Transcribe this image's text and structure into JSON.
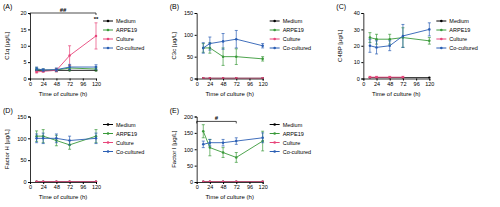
{
  "chart_data": [
    {
      "type": "line",
      "title": "(A)",
      "x_label": "Time of culture (h)",
      "y_label": "C1q [µg/L]",
      "x": [
        12,
        24,
        48,
        72,
        120
      ],
      "xlim": [
        0,
        120
      ],
      "xticks": [
        0,
        24,
        48,
        72,
        96,
        120
      ],
      "ylim": [
        0,
        20
      ],
      "yticks": [
        0,
        5,
        10,
        15,
        20
      ],
      "legend": "right",
      "marker": "circle",
      "series": [
        {
          "name": "Medium",
          "color": "#000000",
          "values": [
            2.5,
            2.5,
            2.5,
            2.5,
            2.5
          ],
          "errors": [
            null,
            null,
            null,
            null,
            null
          ]
        },
        {
          "name": "ARPE19",
          "color": "#3a9a3a",
          "values": [
            2.8,
            2.5,
            2.6,
            3.2,
            2.9
          ],
          "errors": [
            0.5,
            0.4,
            0.5,
            0.8,
            0.6
          ]
        },
        {
          "name": "Culture",
          "color": "#e8457a",
          "values": [
            2.0,
            2.2,
            2.5,
            7,
            13
          ],
          "errors": [
            0.3,
            0.3,
            0.5,
            3,
            4
          ]
        },
        {
          "name": "Co-cultured",
          "color": "#2b5fb4",
          "values": [
            3.0,
            2.6,
            2.7,
            3.5,
            3.5
          ],
          "errors": [
            0.5,
            0.4,
            0.5,
            0.8,
            0.7
          ]
        }
      ],
      "annotations": [
        {
          "text": "##",
          "x_range": [
            0,
            120
          ],
          "y": 20
        },
        {
          "text": "**",
          "x": 120,
          "y": 17.5
        }
      ]
    },
    {
      "type": "line",
      "title": "(B)",
      "x_label": "Time of culture (h)",
      "y_label": "C3c [µg/L]",
      "x": [
        12,
        24,
        48,
        72,
        120
      ],
      "xlim": [
        0,
        120
      ],
      "xticks": [
        0,
        24,
        48,
        72,
        96,
        120
      ],
      "ylim": [
        0,
        150
      ],
      "yticks": [
        0,
        50,
        100,
        150
      ],
      "legend": "right",
      "marker": "circle",
      "series": [
        {
          "name": "Medium",
          "color": "#000000",
          "values": [
            0.5,
            0.5,
            0.5,
            0.5,
            0.5
          ],
          "errors": [
            null,
            null,
            null,
            null,
            null
          ]
        },
        {
          "name": "ARPE19",
          "color": "#3a9a3a",
          "values": [
            70,
            70,
            50,
            50,
            45
          ],
          "errors": [
            10,
            12,
            20,
            18,
            5
          ]
        },
        {
          "name": "Culture",
          "color": "#e8457a",
          "values": [
            0.5,
            0.5,
            0.5,
            0.5,
            0.5
          ],
          "errors": [
            null,
            null,
            null,
            null,
            null
          ]
        },
        {
          "name": "Co-cultured",
          "color": "#2b5fb4",
          "values": [
            70,
            80,
            85,
            90,
            75
          ],
          "errors": [
            12,
            15,
            18,
            20,
            5
          ]
        }
      ]
    },
    {
      "type": "line",
      "title": "(C)",
      "x_label": "Time of culture (h)",
      "y_label": "C4BP [µg/L]",
      "x": [
        12,
        24,
        48,
        72,
        120
      ],
      "xlim": [
        0,
        120
      ],
      "xticks": [
        0,
        24,
        48,
        72,
        96,
        120
      ],
      "ylim": [
        0,
        40
      ],
      "yticks": [
        0,
        10,
        20,
        30,
        40
      ],
      "legend": "right",
      "marker": "circle",
      "series": [
        {
          "name": "Medium",
          "color": "#000000",
          "values": [
            0.5,
            0.5,
            0.5,
            0.5,
            0.5
          ],
          "errors": [
            null,
            null,
            null,
            null,
            null
          ]
        },
        {
          "name": "ARPE19",
          "color": "#3a9a3a",
          "values": [
            25,
            24,
            24,
            25,
            23
          ],
          "errors": [
            3,
            3,
            3,
            6,
            2
          ]
        },
        {
          "name": "Culture",
          "color": "#e8457a",
          "values": [
            0.8,
            0.8,
            0.8,
            0.8,
            null
          ],
          "errors": [
            0.5,
            0.5,
            0.5,
            0.5,
            null
          ]
        },
        {
          "name": "Co-cultured",
          "color": "#2b5fb4",
          "values": [
            20,
            19,
            20,
            26,
            30
          ],
          "errors": [
            4,
            4,
            3,
            7,
            4
          ]
        }
      ]
    },
    {
      "type": "line",
      "title": "(D)",
      "x_label": "Time of culture (h)",
      "y_label": "Factor H [µg/L]",
      "x": [
        12,
        24,
        48,
        72,
        120
      ],
      "xlim": [
        0,
        120
      ],
      "xticks": [
        0,
        24,
        48,
        72,
        96,
        120
      ],
      "ylim": [
        0,
        150
      ],
      "yticks": [
        0,
        50,
        100,
        150
      ],
      "legend": "right",
      "marker": "circle",
      "series": [
        {
          "name": "Medium",
          "color": "#000000",
          "values": [
            0.5,
            0.5,
            0.5,
            0.5,
            0.5
          ],
          "errors": [
            null,
            null,
            null,
            null,
            null
          ]
        },
        {
          "name": "ARPE19",
          "color": "#3a9a3a",
          "values": [
            105,
            105,
            95,
            85,
            105
          ],
          "errors": [
            12,
            15,
            12,
            10,
            15
          ]
        },
        {
          "name": "Culture",
          "color": "#e8457a",
          "values": [
            0.5,
            0.5,
            0.5,
            0.5,
            0.5
          ],
          "errors": [
            null,
            null,
            null,
            null,
            null
          ]
        },
        {
          "name": "Co-cultured",
          "color": "#2b5fb4",
          "values": [
            100,
            100,
            100,
            95,
            100
          ],
          "errors": [
            10,
            12,
            10,
            10,
            12
          ]
        }
      ]
    },
    {
      "type": "line",
      "title": "(E)",
      "x_label": "Time of culture (h)",
      "y_label": "Factor I [µg/L]",
      "x": [
        12,
        24,
        48,
        72,
        120
      ],
      "xlim": [
        0,
        120
      ],
      "xticks": [
        0,
        24,
        48,
        72,
        96,
        120
      ],
      "ylim": [
        0,
        200
      ],
      "yticks": [
        0,
        50,
        100,
        150,
        200
      ],
      "legend": "right",
      "marker": "circle",
      "series": [
        {
          "name": "Medium",
          "color": "#000000",
          "values": [
            0.5,
            0.5,
            0.5,
            0.5,
            0.5
          ],
          "errors": [
            null,
            null,
            null,
            null,
            null
          ]
        },
        {
          "name": "ARPE19",
          "color": "#3a9a3a",
          "values": [
            155,
            105,
            90,
            75,
            125
          ],
          "errors": [
            20,
            25,
            15,
            15,
            30
          ]
        },
        {
          "name": "Culture",
          "color": "#e8457a",
          "values": [
            0.5,
            0.5,
            0.5,
            0.5,
            0.5
          ],
          "errors": [
            null,
            null,
            null,
            null,
            null
          ]
        },
        {
          "name": "Co-cultured",
          "color": "#2b5fb4",
          "values": [
            115,
            120,
            120,
            125,
            135
          ],
          "errors": [
            10,
            10,
            10,
            10,
            15
          ]
        }
      ],
      "annotations": [
        {
          "text": "#",
          "x_range": [
            0,
            72
          ],
          "y": 185
        }
      ]
    }
  ]
}
